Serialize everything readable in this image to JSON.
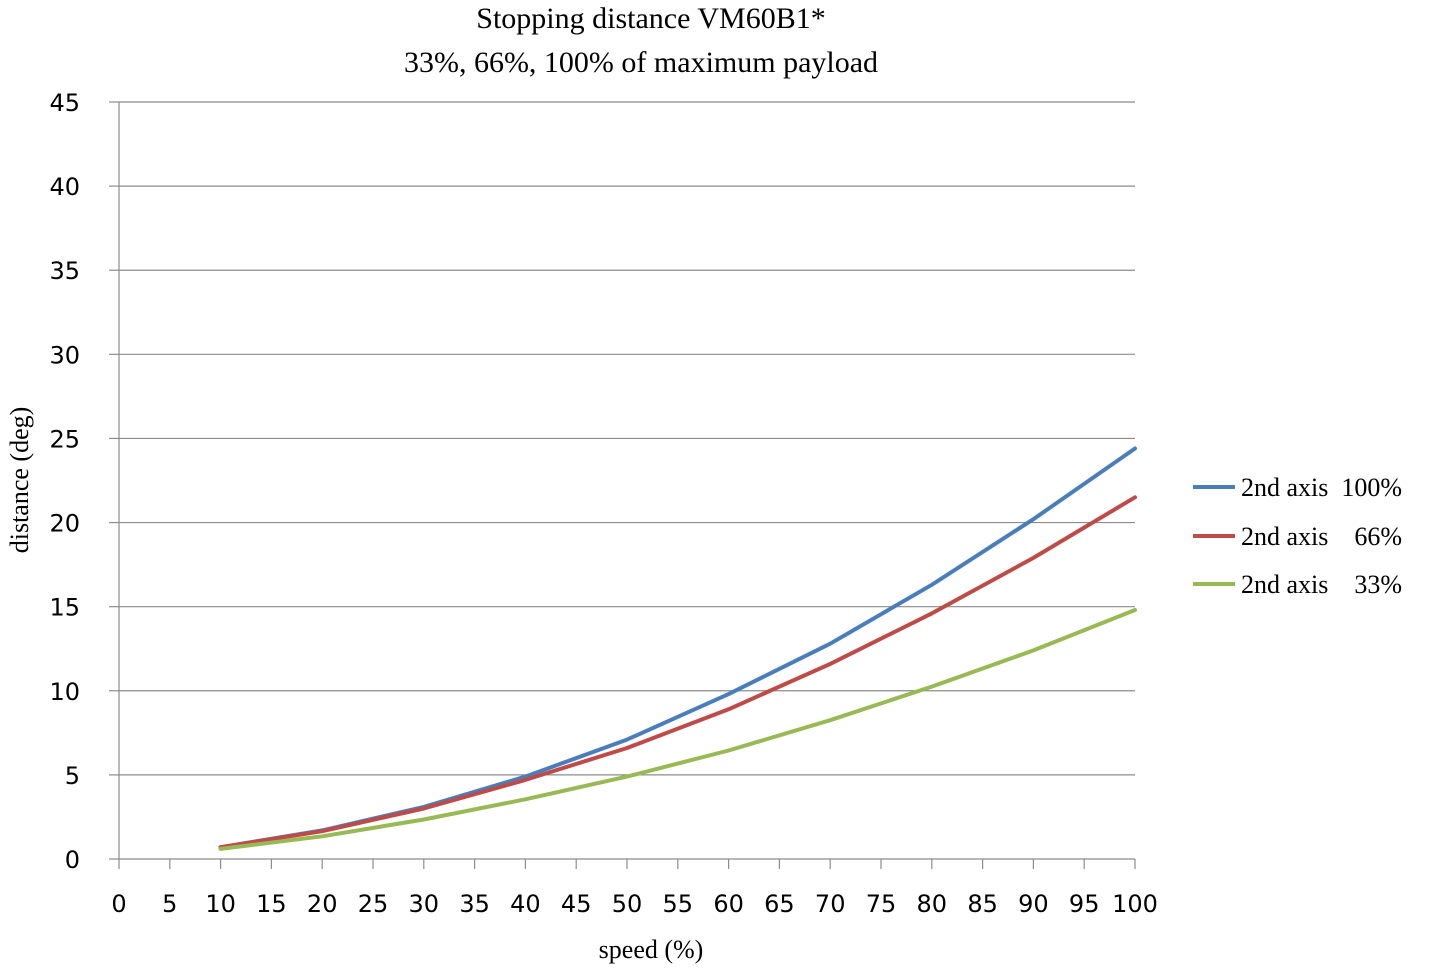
{
  "chart_data": {
    "type": "line",
    "title": "Stopping distance VM60B1*",
    "subtitle": "33%, 66%, 100% of maximum payload",
    "xlabel": "speed (%)",
    "ylabel": "distance (deg)",
    "xlim": [
      0,
      100
    ],
    "ylim": [
      0,
      45
    ],
    "x_ticks": [
      0,
      5,
      10,
      15,
      20,
      25,
      30,
      35,
      40,
      45,
      50,
      55,
      60,
      65,
      70,
      75,
      80,
      85,
      90,
      95,
      100
    ],
    "y_ticks": [
      0,
      5,
      10,
      15,
      20,
      25,
      30,
      35,
      40,
      45
    ],
    "grid": "horizontal",
    "legend_position": "right",
    "x": [
      10,
      20,
      30,
      40,
      50,
      60,
      70,
      80,
      90,
      100
    ],
    "series": [
      {
        "name": "2nd axis  100%",
        "color": "#4A7EBB",
        "values": [
          0.7,
          1.7,
          3.1,
          4.9,
          7.1,
          9.8,
          12.8,
          16.3,
          20.2,
          24.4
        ]
      },
      {
        "name": "2nd axis    66%",
        "color": "#BE4B48",
        "values": [
          0.7,
          1.65,
          3.0,
          4.7,
          6.6,
          8.9,
          11.6,
          14.6,
          17.9,
          21.5
        ]
      },
      {
        "name": "2nd axis    33%",
        "color": "#98B954",
        "values": [
          0.6,
          1.35,
          2.35,
          3.55,
          4.9,
          6.45,
          8.25,
          10.25,
          12.4,
          14.8
        ]
      }
    ]
  }
}
